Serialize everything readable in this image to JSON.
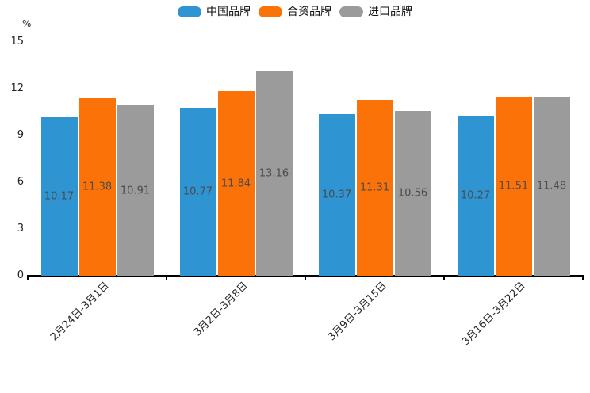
{
  "chart_data": {
    "type": "bar",
    "title": "",
    "ylabel": "%",
    "ylim": [
      0,
      15
    ],
    "yticks": [
      0,
      3,
      6,
      9,
      12,
      15
    ],
    "grid": false,
    "legend_position": "top-center",
    "bar_value_labels": true,
    "categories": [
      "2月24日-3月1日",
      "3月2日-3月8日",
      "3月9日-3月15日",
      "3月16日-3月22日"
    ],
    "series": [
      {
        "name": "中国品牌",
        "color": "#2E94D2",
        "values": [
          10.17,
          10.77,
          10.37,
          10.27
        ]
      },
      {
        "name": "合资品牌",
        "color": "#FB7208",
        "values": [
          11.38,
          11.84,
          11.31,
          11.51
        ]
      },
      {
        "name": "进口品牌",
        "color": "#9B9B9B",
        "values": [
          10.91,
          13.16,
          10.56,
          11.48
        ]
      }
    ],
    "colors": {
      "axis_line": "#000000",
      "axis_text": "#222222",
      "value_label_text": "#4C4C4C",
      "background": "#FFFFFF"
    }
  }
}
